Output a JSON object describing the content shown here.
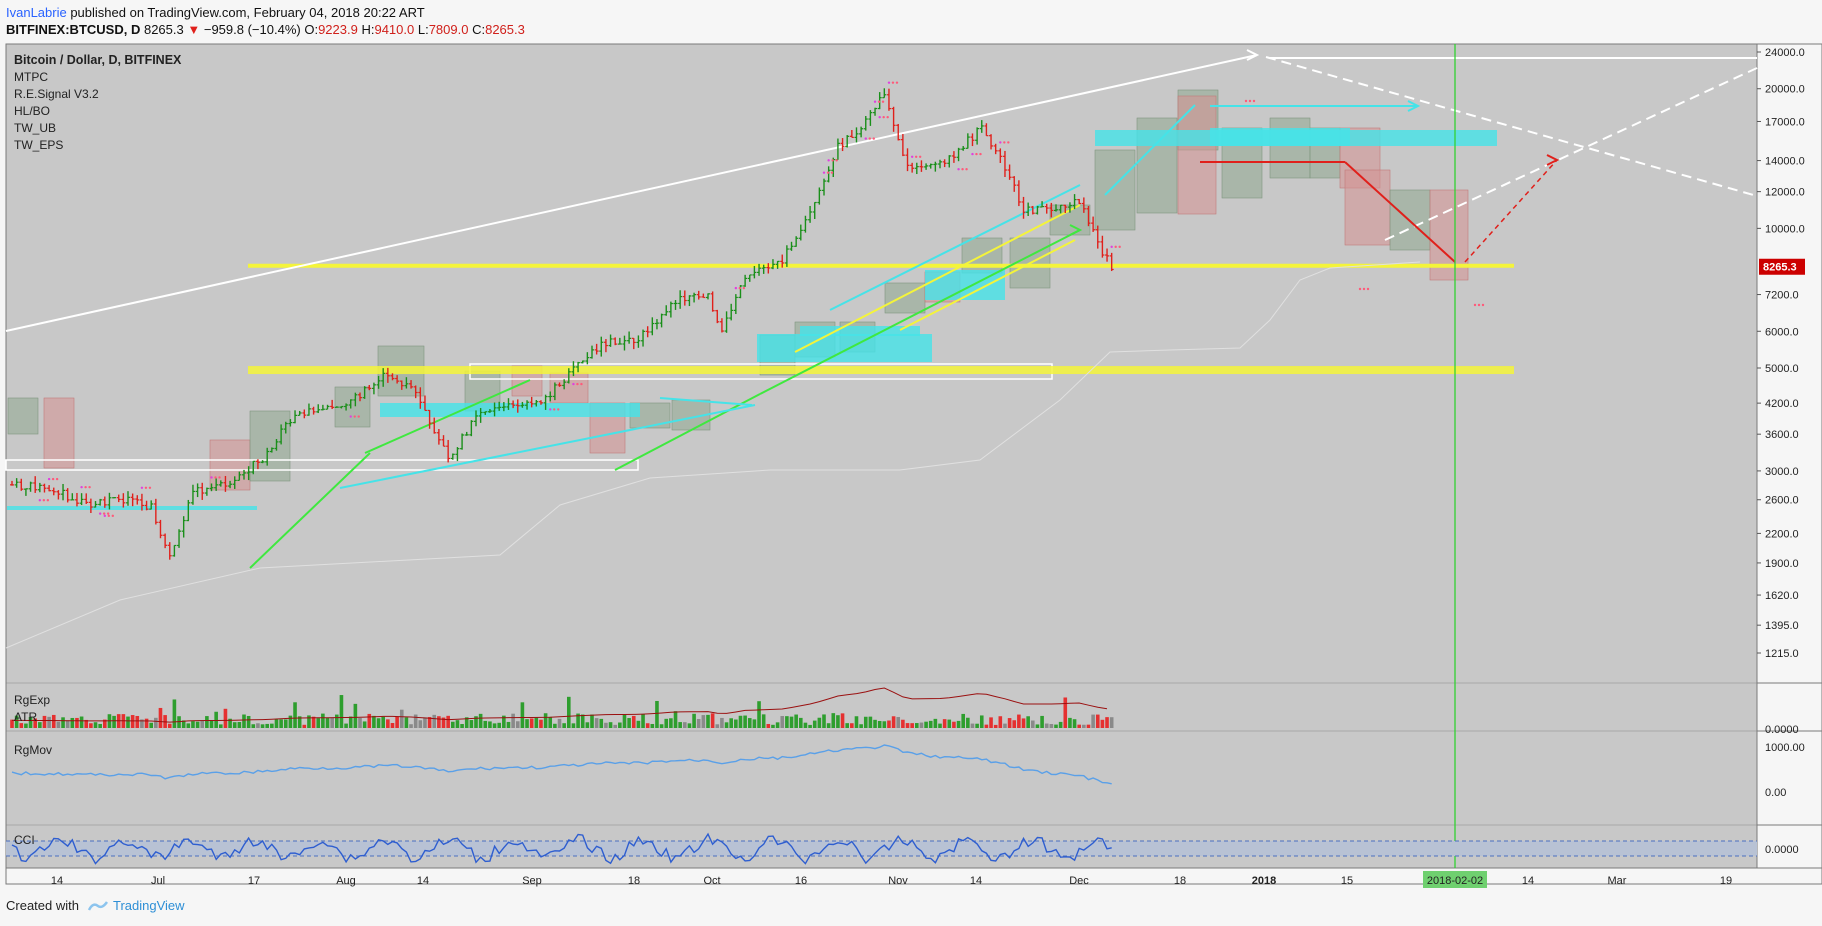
{
  "header": {
    "author": "IvanLabrie",
    "published_text": " published on TradingView.com, February 04, 2018 20:22 ART",
    "symbol": "BITFINEX:BTCUSD, D",
    "last": "8265.3",
    "change_arrow": "▼",
    "change": "−959.8 (−10.4%)",
    "o_label": "O:",
    "o_val": "9223.9",
    "h_label": "H:",
    "h_val": "9410.0",
    "l_label": "L:",
    "l_val": "7809.0",
    "c_label": "C:",
    "c_val": "8265.3"
  },
  "legend": {
    "title": "Bitcoin / Dollar, D, BITFINEX",
    "indicators": [
      "MTPC",
      "R.E.Signal V3.2",
      "HL/BO",
      "TW_UB",
      "TW_EPS"
    ]
  },
  "panes": {
    "volume_title": "RgExp",
    "atr_title": "ATR",
    "mov_title": "RgMov",
    "cci_title": "CCI"
  },
  "footer": {
    "created_with": "Created with",
    "brand": "TradingView"
  },
  "colors": {
    "background": "#c8c8c8",
    "bull": "#1a8f1a",
    "bear": "#e0201b",
    "yellow": "#f4f43a",
    "cyan": "#45e3e8",
    "line_blue": "#5aa0e8",
    "current_price": "#cc0000",
    "vertical_line": "#32d232"
  },
  "chart_data": {
    "type": "line",
    "title": "Bitcoin / Dollar, D, BITFINEX",
    "scale": "log",
    "ylim": [
      1100,
      24500
    ],
    "y_ticks": [
      "24000.0",
      "20000.0",
      "17000.0",
      "14000.0",
      "12000.0",
      "10000.0",
      "7200.0",
      "6000.0",
      "5000.0",
      "4200.0",
      "3600.0",
      "3000.0",
      "2600.0",
      "2200.0",
      "1900.0",
      "1620.0",
      "1395.0",
      "1215.0"
    ],
    "x_ticks": [
      "14",
      "Jul",
      "17",
      "Aug",
      "14",
      "Sep",
      "18",
      "Oct",
      "16",
      "Nov",
      "14",
      "Dec",
      "18",
      "2018",
      "15",
      "2018-02-02",
      "14",
      "Mar",
      "19"
    ],
    "current_price_label": "8265.3",
    "close_series": [
      [
        "Jun 12",
        2800
      ],
      [
        "Jun 20",
        2750
      ],
      [
        "Jun 28",
        2550
      ],
      [
        "Jul 6",
        2600
      ],
      [
        "Jul 12",
        2500
      ],
      [
        "Jul 16",
        1950
      ],
      [
        "Jul 21",
        2700
      ],
      [
        "Jul 28",
        2800
      ],
      [
        "Aug 5",
        3200
      ],
      [
        "Aug 12",
        4000
      ],
      [
        "Aug 18",
        4100
      ],
      [
        "Aug 25",
        4300
      ],
      [
        "Sep 1",
        4900
      ],
      [
        "Sep 7",
        4400
      ],
      [
        "Sep 14",
        3200
      ],
      [
        "Sep 20",
        3900
      ],
      [
        "Sep 27",
        4200
      ],
      [
        "Oct 5",
        4300
      ],
      [
        "Oct 11",
        5000
      ],
      [
        "Oct 18",
        5700
      ],
      [
        "Oct 25",
        5800
      ],
      [
        "Nov 2",
        7000
      ],
      [
        "Nov 9",
        7200
      ],
      [
        "Nov 12",
        6000
      ],
      [
        "Nov 17",
        7800
      ],
      [
        "Nov 25",
        8500
      ],
      [
        "Dec 1",
        11000
      ],
      [
        "Dec 7",
        15000
      ],
      [
        "Dec 12",
        16500
      ],
      [
        "Dec 17",
        19500
      ],
      [
        "Dec 22",
        13500
      ],
      [
        "Dec 30",
        13800
      ],
      [
        "Jan 7",
        16500
      ],
      [
        "Jan 12",
        13600
      ],
      [
        "Jan 16",
        11000
      ],
      [
        "Jan 22",
        11000
      ],
      [
        "Jan 28",
        11500
      ],
      [
        "Feb 2",
        8900
      ],
      [
        "Feb 4",
        8265.3
      ]
    ],
    "horizontal_levels": [
      {
        "name": "",
        "value": 8265.3
      },
      {
        "name": "",
        "value": 4950
      }
    ],
    "cci_ticks": [
      "0.0000"
    ],
    "mov_ticks": [
      "1000.00",
      "0.00"
    ],
    "volume_ticks": [
      "0.0000"
    ]
  }
}
